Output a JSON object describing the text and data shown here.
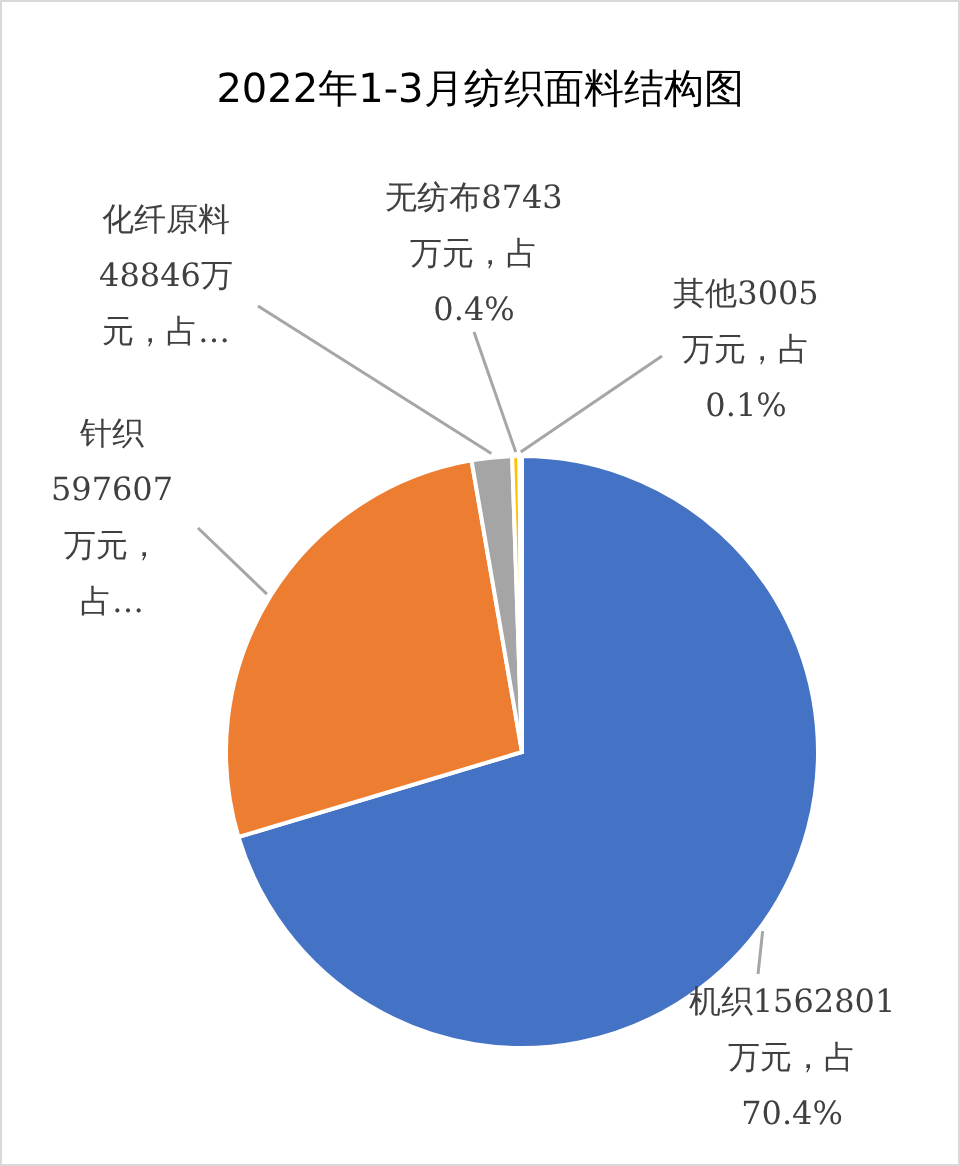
{
  "chart_data": {
    "type": "pie",
    "title": "2022年1-3月纺织面料结构图",
    "categories": [
      "机织",
      "针织",
      "化纤原料",
      "无纺布",
      "其他"
    ],
    "values": [
      1562801,
      597607,
      48846,
      8743,
      3005
    ],
    "colors": [
      "#4472c4",
      "#ed7d31",
      "#a5a5a5",
      "#ffc000",
      "#5b9bd5"
    ],
    "value_labels": [
      "1562801万元，占70.4%",
      "597607万元，占…",
      "48846万元，占…",
      "8743万元，占0.4%",
      "3005万元，占0.1%"
    ]
  }
}
